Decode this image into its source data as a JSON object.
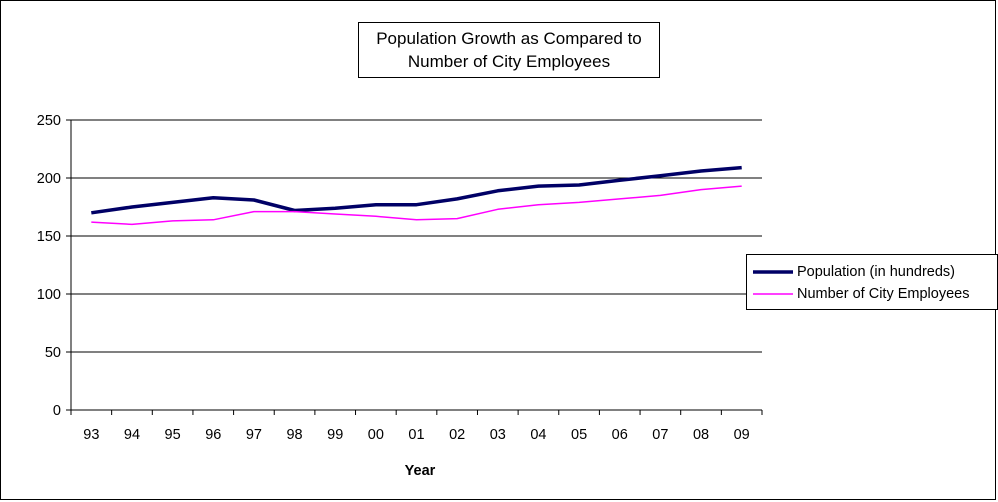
{
  "chart_data": {
    "type": "line",
    "title_lines": [
      "Population Growth as Compared to",
      "Number of City Employees"
    ],
    "xlabel": "Year",
    "ylabel": "",
    "categories": [
      "93",
      "94",
      "95",
      "96",
      "97",
      "98",
      "99",
      "00",
      "01",
      "02",
      "03",
      "04",
      "05",
      "06",
      "07",
      "08",
      "09"
    ],
    "ylim": [
      0,
      250
    ],
    "yticks": [
      0,
      50,
      100,
      150,
      200,
      250
    ],
    "grid": true,
    "legend_position": "right",
    "series": [
      {
        "name": "Population (in hundreds)",
        "color": "#000066",
        "values": [
          170,
          175,
          179,
          183,
          181,
          172,
          174,
          177,
          177,
          182,
          189,
          193,
          194,
          198,
          202,
          206,
          209
        ]
      },
      {
        "name": "Number of City Employees",
        "color": "#FF00FF",
        "values": [
          162,
          160,
          163,
          164,
          171,
          171,
          169,
          167,
          164,
          165,
          173,
          177,
          179,
          182,
          185,
          190,
          193
        ]
      }
    ]
  }
}
